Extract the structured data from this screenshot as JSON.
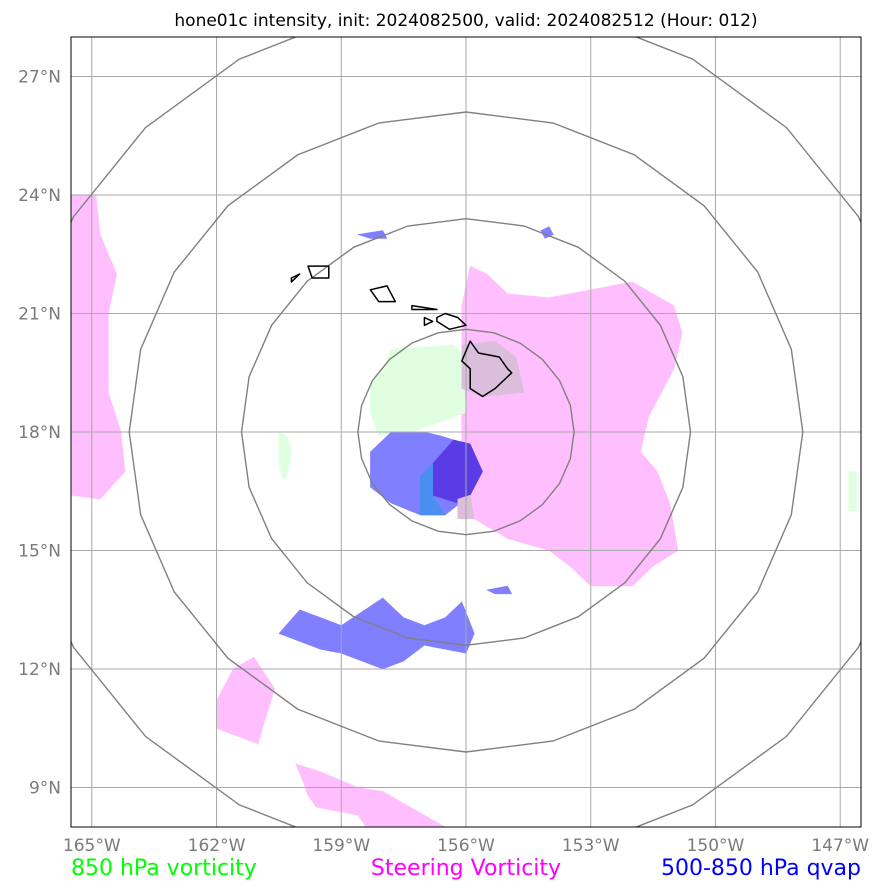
{
  "title": "hone01c intensity, init: 2024082500, valid: 2024082512 (Hour: 012)",
  "chart_data": {
    "type": "map",
    "lon_range": [
      -165.5,
      -146.5
    ],
    "lat_range": [
      8,
      28
    ],
    "lat_ticks": [
      {
        "value": 9,
        "label": "9°N"
      },
      {
        "value": 12,
        "label": "12°N"
      },
      {
        "value": 15,
        "label": "15°N"
      },
      {
        "value": 18,
        "label": "18°N"
      },
      {
        "value": 21,
        "label": "21°N"
      },
      {
        "value": 24,
        "label": "24°N"
      },
      {
        "value": 27,
        "label": "27°N"
      }
    ],
    "lon_ticks": [
      {
        "value": -165,
        "label": "165°W"
      },
      {
        "value": -162,
        "label": "162°W"
      },
      {
        "value": -159,
        "label": "159°W"
      },
      {
        "value": -156,
        "label": "156°W"
      },
      {
        "value": -153,
        "label": "153°W"
      },
      {
        "value": -150,
        "label": "150°W"
      },
      {
        "value": -147,
        "label": "147°W"
      }
    ],
    "grid": true,
    "range_rings": {
      "center": [
        -156,
        18
      ],
      "radii_deg": [
        2.6,
        5.4,
        8.1,
        10.9
      ]
    },
    "legend": [
      {
        "label": "850 hPa vorticity",
        "color": "#00ff00"
      },
      {
        "label": "Steering Vorticity",
        "color": "#ff00ff"
      },
      {
        "label": "500-850 hPa qvap",
        "color": "#0000ff"
      }
    ],
    "fields": [
      {
        "field": "steering",
        "color": "#ffbfff",
        "polygons": [
          [
            [
              -165.5,
              24.0
            ],
            [
              -164.9,
              24.0
            ],
            [
              -164.8,
              23.0
            ],
            [
              -164.4,
              22.0
            ],
            [
              -164.6,
              21.0
            ],
            [
              -164.6,
              20.0
            ],
            [
              -164.6,
              19.0
            ],
            [
              -164.3,
              18.0
            ],
            [
              -164.2,
              17.0
            ],
            [
              -164.8,
              16.3
            ],
            [
              -165.5,
              16.4
            ]
          ],
          [
            [
              -156.1,
              21.2
            ],
            [
              -155.9,
              22.2
            ],
            [
              -155.5,
              22.0
            ],
            [
              -155.0,
              21.5
            ],
            [
              -154.0,
              21.4
            ],
            [
              -153.0,
              21.6
            ],
            [
              -152.0,
              21.8
            ],
            [
              -151.0,
              21.2
            ],
            [
              -150.8,
              20.5
            ],
            [
              -151.0,
              19.6
            ],
            [
              -151.3,
              19.0
            ],
            [
              -151.6,
              18.4
            ],
            [
              -151.8,
              17.5
            ],
            [
              -151.4,
              17.0
            ],
            [
              -151.1,
              16.2
            ],
            [
              -150.9,
              15.0
            ],
            [
              -151.5,
              14.6
            ],
            [
              -152.0,
              14.1
            ],
            [
              -153.0,
              14.1
            ],
            [
              -153.5,
              14.6
            ],
            [
              -154.0,
              15.0
            ],
            [
              -155.0,
              15.3
            ],
            [
              -155.8,
              15.8
            ],
            [
              -156.1,
              16.6
            ],
            [
              -156.1,
              17.5
            ],
            [
              -156.1,
              18.5
            ],
            [
              -156.1,
              19.5
            ]
          ],
          [
            [
              -161.1,
              12.3
            ],
            [
              -160.6,
              11.5
            ],
            [
              -160.9,
              10.5
            ],
            [
              -161.0,
              10.1
            ],
            [
              -162.0,
              10.5
            ],
            [
              -162.0,
              11.2
            ],
            [
              -161.6,
              12.0
            ]
          ],
          [
            [
              -160.1,
              9.6
            ],
            [
              -159.9,
              9.1
            ],
            [
              -159.8,
              8.8
            ],
            [
              -159.6,
              8.5
            ],
            [
              -158.6,
              8.3
            ],
            [
              -158.4,
              8.0
            ],
            [
              -156.5,
              8.0
            ],
            [
              -157.0,
              8.3
            ],
            [
              -157.5,
              8.6
            ],
            [
              -158.0,
              8.9
            ],
            [
              -158.6,
              9.0
            ],
            [
              -159.5,
              9.4
            ]
          ]
        ]
      },
      {
        "field": "vort850",
        "color": "#e0ffe0",
        "polygons": [
          [
            [
              -157.8,
              20.1
            ],
            [
              -156.3,
              20.2
            ],
            [
              -156.1,
              20.0
            ],
            [
              -156.0,
              18.5
            ],
            [
              -156.5,
              18.3
            ],
            [
              -157.3,
              18.0
            ],
            [
              -158.1,
              17.9
            ],
            [
              -158.3,
              18.5
            ],
            [
              -158.3,
              19.2
            ],
            [
              -158.0,
              19.6
            ]
          ],
          [
            [
              -160.5,
              18.0
            ],
            [
              -160.3,
              17.9
            ],
            [
              -160.2,
              17.5
            ],
            [
              -160.3,
              16.9
            ],
            [
              -160.4,
              16.8
            ],
            [
              -160.5,
              17.2
            ]
          ],
          [
            [
              -146.8,
              17.0
            ],
            [
              -146.6,
              17.0
            ],
            [
              -146.6,
              16.0
            ],
            [
              -146.8,
              16.0
            ]
          ]
        ]
      },
      {
        "field": "qvap",
        "color": "#7f7fff",
        "polygons": [
          [
            [
              -157.8,
              18.0
            ],
            [
              -157.0,
              18.0
            ],
            [
              -156.6,
              17.9
            ],
            [
              -156.0,
              17.7
            ],
            [
              -155.7,
              17.0
            ],
            [
              -155.9,
              16.4
            ],
            [
              -156.5,
              15.9
            ],
            [
              -157.1,
              15.9
            ],
            [
              -157.8,
              16.2
            ],
            [
              -158.3,
              16.6
            ],
            [
              -158.3,
              17.5
            ]
          ],
          [
            [
              -160.5,
              12.9
            ],
            [
              -160.0,
              13.5
            ],
            [
              -159.5,
              13.3
            ],
            [
              -159.0,
              13.1
            ],
            [
              -158.0,
              13.8
            ],
            [
              -157.5,
              13.3
            ],
            [
              -157.0,
              13.1
            ],
            [
              -156.5,
              13.3
            ],
            [
              -156.1,
              13.7
            ],
            [
              -155.8,
              12.9
            ],
            [
              -156.0,
              12.4
            ],
            [
              -157.0,
              12.6
            ],
            [
              -157.5,
              12.2
            ],
            [
              -158.0,
              12.0
            ],
            [
              -159.0,
              12.4
            ],
            [
              -159.5,
              12.5
            ]
          ],
          [
            [
              -158.6,
              23.0
            ],
            [
              -158.0,
              23.1
            ],
            [
              -157.9,
              22.9
            ],
            [
              -158.3,
              22.9
            ]
          ],
          [
            [
              -154.2,
              23.1
            ],
            [
              -154.0,
              23.2
            ],
            [
              -153.9,
              23.0
            ],
            [
              -154.1,
              22.9
            ]
          ],
          [
            [
              -155.5,
              14.0
            ],
            [
              -155.0,
              14.1
            ],
            [
              -154.9,
              13.9
            ],
            [
              -155.3,
              13.9
            ]
          ]
        ]
      },
      {
        "field": "qvap_core",
        "color": "#5a3ce6",
        "polygons": [
          [
            [
              -156.8,
              17.2
            ],
            [
              -156.3,
              17.8
            ],
            [
              -155.9,
              17.7
            ],
            [
              -155.6,
              17.0
            ],
            [
              -155.9,
              16.4
            ],
            [
              -156.2,
              16.2
            ],
            [
              -156.8,
              16.4
            ]
          ]
        ]
      },
      {
        "field": "overlap_green_blue",
        "color": "#4a8ff0",
        "polygons": [
          [
            [
              -157.1,
              15.9
            ],
            [
              -157.1,
              16.9
            ],
            [
              -156.8,
              17.2
            ],
            [
              -156.8,
              16.4
            ],
            [
              -156.5,
              15.9
            ]
          ]
        ]
      },
      {
        "field": "overlap_pink_grey",
        "color": "#dabedc",
        "polygons": [
          [
            [
              -156.1,
              20.2
            ],
            [
              -155.3,
              20.3
            ],
            [
              -154.8,
              19.9
            ],
            [
              -154.6,
              19.0
            ],
            [
              -155.6,
              18.9
            ],
            [
              -156.1,
              19.1
            ]
          ],
          [
            [
              -156.2,
              16.3
            ],
            [
              -155.9,
              16.4
            ],
            [
              -155.8,
              15.8
            ],
            [
              -156.2,
              15.8
            ]
          ]
        ]
      }
    ],
    "coastlines": [
      [
        [
          -155.9,
          20.3
        ],
        [
          -155.7,
          20.0
        ],
        [
          -155.2,
          19.9
        ],
        [
          -155.0,
          19.6
        ],
        [
          -154.9,
          19.5
        ],
        [
          -155.3,
          19.1
        ],
        [
          -155.6,
          18.9
        ],
        [
          -155.9,
          19.1
        ],
        [
          -155.9,
          19.6
        ],
        [
          -156.1,
          19.8
        ]
      ],
      [
        [
          -156.7,
          20.9
        ],
        [
          -156.5,
          21.0
        ],
        [
          -156.2,
          20.9
        ],
        [
          -156.0,
          20.7
        ],
        [
          -156.4,
          20.6
        ],
        [
          -156.7,
          20.8
        ]
      ],
      [
        [
          -157.3,
          21.2
        ],
        [
          -156.7,
          21.1
        ],
        [
          -157.3,
          21.1
        ]
      ],
      [
        [
          -157.0,
          20.9
        ],
        [
          -156.8,
          20.8
        ],
        [
          -157.0,
          20.7
        ]
      ],
      [
        [
          -158.3,
          21.6
        ],
        [
          -157.9,
          21.7
        ],
        [
          -157.7,
          21.3
        ],
        [
          -158.1,
          21.3
        ],
        [
          -158.3,
          21.6
        ]
      ],
      [
        [
          -159.8,
          22.2
        ],
        [
          -159.3,
          22.2
        ],
        [
          -159.3,
          21.9
        ],
        [
          -159.7,
          21.9
        ]
      ],
      [
        [
          -160.2,
          21.9
        ],
        [
          -160.0,
          22.0
        ],
        [
          -160.2,
          21.8
        ]
      ]
    ]
  }
}
